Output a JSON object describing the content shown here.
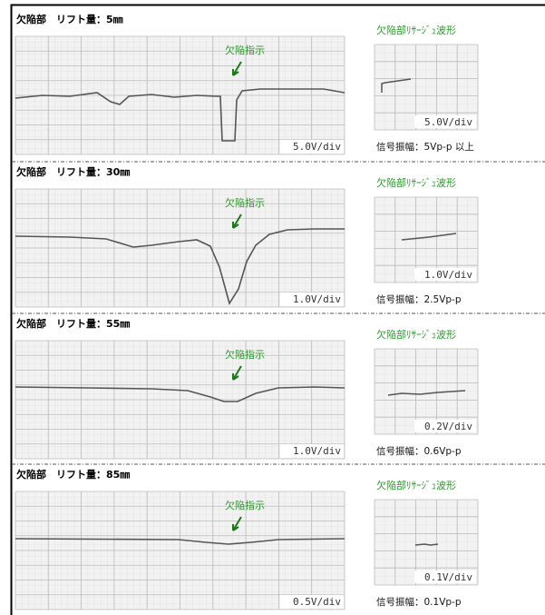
{
  "panels": [
    {
      "title": "欠陥部　リフト量：5㎜",
      "annotation": "欠陥指示",
      "scale": "5.0V/div",
      "lissajous_title": "欠陥部ﾘｻｰｼﾞｭ波形",
      "lissajous_scale": "5.0V/div",
      "amplitude": "信号振幅：5Vp-p 以上"
    },
    {
      "title": "欠陥部　リフト量：30㎜",
      "annotation": "欠陥指示",
      "scale": "1.0V/div",
      "lissajous_title": "欠陥部ﾘｻｰｼﾞｭ波形",
      "lissajous_scale": "1.0V/div",
      "amplitude": "信号振幅：2.5Vp-p"
    },
    {
      "title": "欠陥部　リフト量：55㎜",
      "annotation": "欠陥指示",
      "scale": "1.0V/div",
      "lissajous_title": "欠陥部ﾘｻｰｼﾞｭ波形",
      "lissajous_scale": "0.2V/div",
      "amplitude": "信号振幅：0.6Vp-p"
    },
    {
      "title": "欠陥部　リフト量：85㎜",
      "annotation": "欠陥指示",
      "scale": "0.5V/div",
      "lissajous_title": "欠陥部ﾘｻｰｼﾞｭ波形",
      "lissajous_scale": "0.1V/div",
      "amplitude": "信号振幅：0.1Vp-p"
    }
  ]
}
